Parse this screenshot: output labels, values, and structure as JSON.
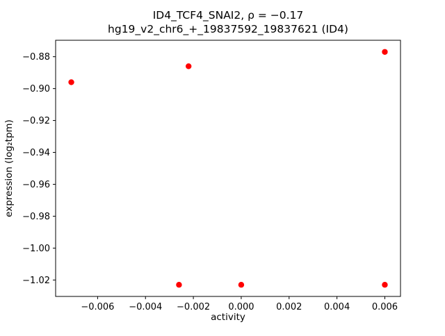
{
  "chart_data": {
    "type": "scatter",
    "title_line1": "ID4_TCF4_SNAI2, ρ = −0.17",
    "title_line2": "hg19_v2_chr6_+_19837592_19837621 (ID4)",
    "xlabel": "activity",
    "ylabel": "expression (log₂tpm)",
    "marker_color": "#ff0000",
    "marker_radius": 4.2,
    "xlim": [
      -0.007755,
      0.006655
    ],
    "ylim": [
      -1.0303,
      -0.8697
    ],
    "xticks": [
      -0.006,
      -0.004,
      -0.002,
      0.0,
      0.002,
      0.004,
      0.006
    ],
    "xtick_labels": [
      "−0.006",
      "−0.004",
      "−0.002",
      "0.000",
      "0.002",
      "0.004",
      "0.006"
    ],
    "yticks": [
      -0.88,
      -0.9,
      -0.92,
      -0.94,
      -0.96,
      -0.98,
      -1.0,
      -1.02
    ],
    "ytick_labels": [
      "−0.88",
      "−0.90",
      "−0.92",
      "−0.94",
      "−0.96",
      "−0.98",
      "−1.00",
      "−1.02"
    ],
    "points": [
      {
        "x": -0.0071,
        "y": -0.896
      },
      {
        "x": -0.0022,
        "y": -0.886
      },
      {
        "x": 0.006,
        "y": -0.877
      },
      {
        "x": -0.0026,
        "y": -1.023
      },
      {
        "x": 0.0,
        "y": -1.023
      },
      {
        "x": 0.006,
        "y": -1.023
      }
    ],
    "grid": false,
    "legend": null
  }
}
